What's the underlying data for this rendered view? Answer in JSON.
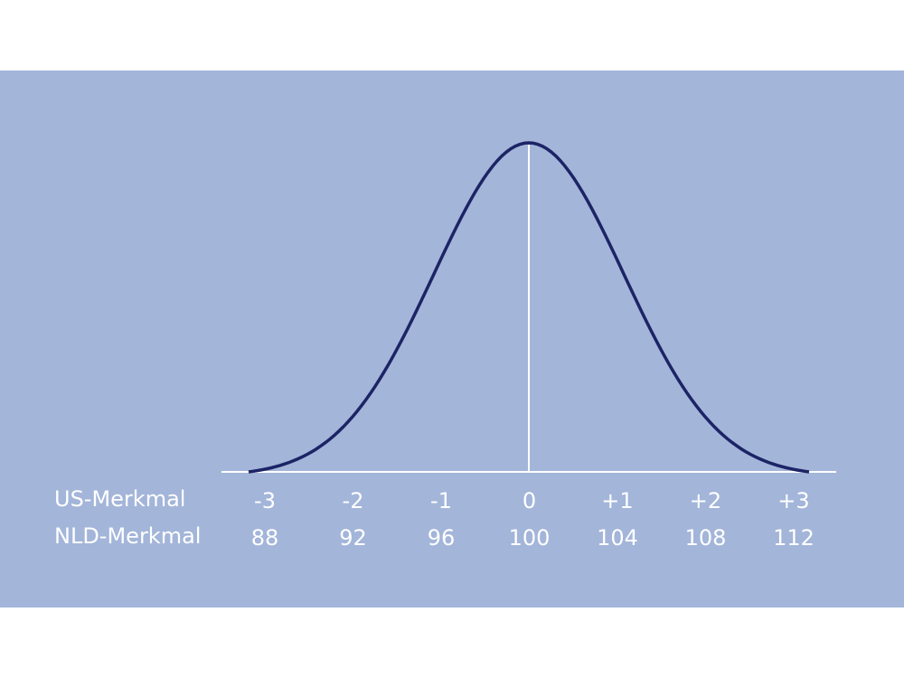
{
  "rows": [
    {
      "label": "US-Merkmal",
      "values": [
        "-3",
        "-2",
        "-1",
        "0",
        "+1",
        "+2",
        "+3"
      ]
    },
    {
      "label": "NLD-Merkmal",
      "values": [
        88,
        92,
        96,
        100,
        104,
        108,
        112
      ]
    }
  ]
}
